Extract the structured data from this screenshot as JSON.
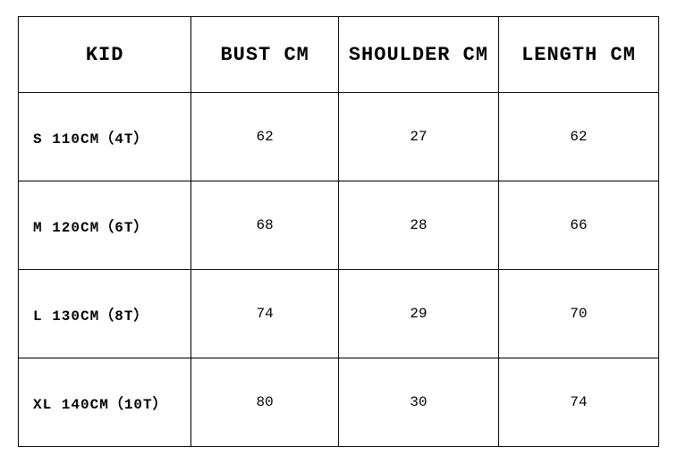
{
  "table": {
    "type": "table",
    "background_color": "#ffffff",
    "border_color": "#000000",
    "text_color": "#000000",
    "header_fontsize": 22,
    "body_fontsize": 16,
    "columns": [
      {
        "label": "KID",
        "align_header": "center",
        "align_body": "left",
        "width_pct": 27
      },
      {
        "label": "BUST CM",
        "align_header": "center",
        "align_body": "center",
        "width_pct": 23
      },
      {
        "label": "SHOULDER CM",
        "align_header": "center",
        "align_body": "center",
        "width_pct": 25
      },
      {
        "label": "LENGTH CM",
        "align_header": "center",
        "align_body": "center",
        "width_pct": 25
      }
    ],
    "rows": [
      {
        "size": "S 110CM（4T）",
        "bust": "62",
        "shoulder": "27",
        "length": "62"
      },
      {
        "size": "M 120CM（6T）",
        "bust": "68",
        "shoulder": "28",
        "length": "66"
      },
      {
        "size": "L 130CM（8T）",
        "bust": "74",
        "shoulder": "29",
        "length": "70"
      },
      {
        "size": "XL 140CM（10T）",
        "bust": "80",
        "shoulder": "30",
        "length": "74"
      }
    ]
  }
}
